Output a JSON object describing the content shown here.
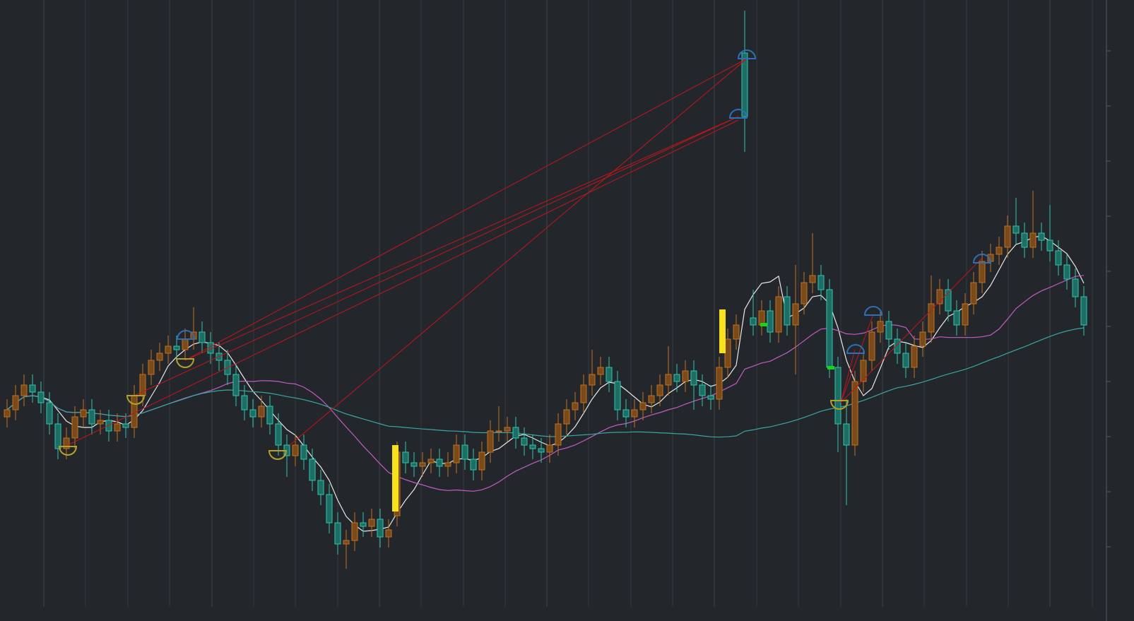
{
  "chart_data": {
    "type": "candlestick",
    "categories": [
      null,
      null,
      null,
      null,
      null,
      null,
      null,
      null,
      null,
      null,
      null,
      null,
      null,
      null,
      null,
      null,
      null,
      null,
      null,
      null,
      null,
      null,
      null,
      null,
      null,
      null,
      null,
      null,
      null,
      null,
      null,
      null,
      null,
      null,
      null,
      null,
      null,
      null,
      null,
      null,
      null,
      null,
      null,
      null,
      null,
      null,
      null,
      null,
      null,
      null,
      null,
      null,
      null,
      null,
      null,
      null,
      null,
      null,
      null,
      null,
      null,
      null,
      null,
      null,
      null,
      null,
      null,
      null,
      null,
      null,
      null,
      null,
      null,
      null,
      null,
      null,
      null,
      null,
      null,
      null,
      null,
      null,
      null,
      null,
      null,
      null,
      null,
      null,
      null,
      null,
      null,
      null,
      null,
      null,
      null,
      null,
      null,
      null,
      null,
      null,
      null,
      null,
      null,
      null,
      null,
      null,
      null,
      null,
      null,
      null,
      null,
      null,
      null,
      null,
      null,
      null,
      null,
      null,
      null,
      null,
      null,
      null,
      null,
      null,
      null,
      null,
      null,
      null
    ],
    "open": [
      27,
      28,
      30,
      31.5,
      30.5,
      29,
      26,
      22.5,
      24,
      27,
      28,
      26,
      26.5,
      25,
      26,
      25.5,
      30,
      33,
      35,
      36,
      37,
      36.5,
      38,
      39,
      37.5,
      36,
      35,
      33,
      30,
      28,
      27,
      28.5,
      26,
      23,
      21.5,
      23,
      21,
      18,
      16,
      12,
      9,
      9.5,
      12,
      11.5,
      12.5,
      10,
      13,
      22,
      20.5,
      20,
      20.5,
      21,
      20,
      20.5,
      23,
      21,
      19.5,
      22,
      25,
      25,
      25.5,
      24,
      23,
      22.5,
      22,
      23,
      26,
      28,
      29,
      31.5,
      33,
      34,
      32,
      28,
      27,
      28,
      29,
      30,
      31.5,
      33,
      32,
      33.5,
      31.5,
      30,
      29.5,
      34,
      38,
      78.5,
      41,
      40,
      42,
      39,
      44,
      40,
      43,
      46,
      47,
      45,
      34,
      26,
      23,
      32,
      35,
      39,
      40.5,
      38,
      36,
      34,
      37,
      39,
      43,
      45,
      42,
      40,
      43,
      46,
      49,
      50,
      51,
      54,
      53,
      51,
      53,
      52,
      50.5,
      48.5,
      46.5,
      44
    ],
    "high": [
      29.5,
      31.5,
      33,
      33,
      32,
      30.5,
      27.5,
      25.5,
      28.5,
      29.5,
      29.5,
      28,
      28,
      27.5,
      27.5,
      31.5,
      34.5,
      36.5,
      37.5,
      38.5,
      38.5,
      39.5,
      42.5,
      40.5,
      39,
      37.5,
      36.5,
      34.5,
      31.5,
      29.5,
      30,
      30,
      27.5,
      24.5,
      24.5,
      24.5,
      22.5,
      19.5,
      17.5,
      13.5,
      11,
      13.5,
      13.5,
      14,
      14,
      12.5,
      23.5,
      23.5,
      22,
      22,
      22.5,
      22.5,
      22,
      24.5,
      24.5,
      22.5,
      23.5,
      26.5,
      28.5,
      27,
      27,
      25.5,
      24.5,
      24,
      24.5,
      27.5,
      29.5,
      30.5,
      33,
      36.5,
      35.5,
      35.5,
      33.5,
      29.5,
      29.5,
      30.5,
      31.5,
      33,
      37,
      34.5,
      35,
      35,
      33,
      31.5,
      35.5,
      39.5,
      41.5,
      84.5,
      45,
      43.5,
      43.5,
      45.5,
      45.5,
      48.5,
      47.5,
      53,
      48.5,
      46.5,
      35.5,
      29.5,
      33.5,
      36.5,
      40.5,
      42,
      42,
      39.5,
      37.5,
      38.5,
      40.5,
      47,
      46.5,
      46.5,
      43.5,
      44.5,
      47.5,
      50.5,
      51.5,
      52.5,
      55.5,
      58,
      54.5,
      59,
      54.5,
      57,
      52,
      50,
      48,
      45.5
    ],
    "low": [
      25.5,
      26.5,
      28.5,
      29,
      27.5,
      24.5,
      21,
      21,
      22.5,
      25.5,
      24.5,
      24.5,
      23.5,
      23.5,
      24,
      24,
      28.5,
      31.5,
      33.5,
      34.5,
      35,
      35,
      36.5,
      36,
      34.5,
      33.5,
      31.5,
      28.5,
      26.5,
      25.5,
      25.5,
      24.5,
      21.5,
      18.5,
      20,
      19.5,
      16.5,
      14.5,
      10.5,
      7.5,
      5.5,
      8,
      10,
      10,
      8.5,
      8.5,
      11.5,
      19,
      18.5,
      18.5,
      19,
      18.5,
      18.5,
      19,
      19.5,
      18,
      18,
      20.5,
      23.5,
      23.5,
      22.5,
      21.5,
      21,
      20.5,
      20.5,
      21.5,
      24.5,
      26.5,
      27.5,
      30,
      31.5,
      30.5,
      26.5,
      25.5,
      25.5,
      26.5,
      27.5,
      28.5,
      30,
      30.5,
      30.5,
      28,
      28.5,
      28,
      28,
      32.5,
      36.5,
      64.5,
      38.5,
      38.5,
      37.5,
      37.5,
      38.5,
      33,
      41.5,
      44.5,
      43.5,
      32.5,
      22,
      14.5,
      21.5,
      30.5,
      33.5,
      37.5,
      36.5,
      34.5,
      32.5,
      32.5,
      35.5,
      37.5,
      41.5,
      40.5,
      38.5,
      38.5,
      41.5,
      44.5,
      47.5,
      48.5,
      49.5,
      51.5,
      49.5,
      49.5,
      50.5,
      49,
      47,
      45,
      42.5,
      38.5
    ],
    "close": [
      28,
      30,
      31.5,
      30.5,
      29,
      26,
      22.5,
      24,
      27,
      28,
      26,
      26.5,
      25,
      26,
      25.5,
      30,
      33,
      35,
      36,
      37,
      36.5,
      38,
      39,
      37.5,
      36,
      35,
      33,
      30,
      28,
      27,
      28.5,
      26,
      23,
      21.5,
      23,
      21,
      18,
      16,
      12,
      9,
      9.5,
      12,
      11.5,
      12.5,
      10,
      11,
      22,
      20.5,
      20,
      20.5,
      21,
      20,
      20.5,
      23,
      21,
      19.5,
      22,
      25,
      25,
      25.5,
      24,
      23,
      22.5,
      22,
      23,
      26,
      28,
      29,
      31.5,
      33,
      34,
      32,
      28,
      27,
      28,
      29,
      30,
      31.5,
      33,
      32,
      33.5,
      31.5,
      30,
      29.5,
      34,
      38,
      40,
      69.5,
      40,
      42,
      39,
      44,
      40,
      43,
      46,
      47,
      45,
      34,
      26,
      23,
      32,
      35,
      39,
      40.5,
      38,
      36,
      34,
      37,
      39,
      43,
      45,
      42,
      40,
      43,
      46,
      49,
      50,
      51,
      54,
      53,
      51,
      53,
      52,
      50.5,
      48.5,
      46.5,
      44,
      40
    ],
    "up_color": "#c0701e",
    "down_color": "#2fc4ac",
    "averages": [
      {
        "period": 5,
        "color": "#e8e8e8"
      },
      {
        "period": 20,
        "color": "#c35bc4"
      },
      {
        "period": 60,
        "color": "#3aa6a2"
      }
    ],
    "ylim": [
      0,
      86
    ]
  }
}
